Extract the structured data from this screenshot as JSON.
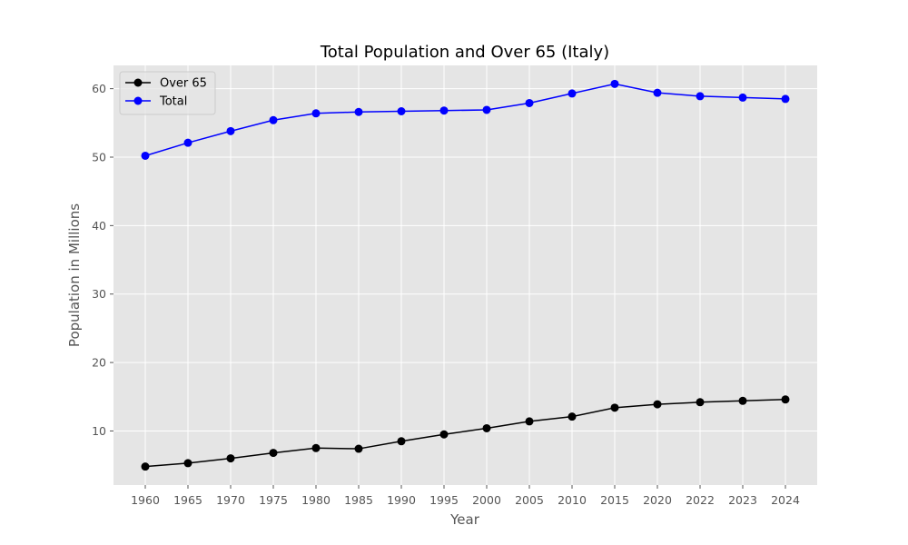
{
  "chart_data": {
    "type": "line",
    "title": "Total Population and Over 65 (Italy)",
    "xlabel": "Year",
    "ylabel": "Population in Millions",
    "categories": [
      "1960",
      "1965",
      "1970",
      "1975",
      "1980",
      "1985",
      "1990",
      "1995",
      "2000",
      "2005",
      "2010",
      "2015",
      "2020",
      "2022",
      "2023",
      "2024"
    ],
    "ylim": [
      2.1,
      63.4
    ],
    "yticks": [
      10,
      20,
      30,
      40,
      50,
      60
    ],
    "grid": true,
    "legend_position": "top-left",
    "series": [
      {
        "name": "Over 65",
        "color": "#000000",
        "values": [
          4.8,
          5.3,
          6.0,
          6.8,
          7.5,
          7.4,
          8.5,
          9.5,
          10.4,
          11.4,
          12.1,
          13.4,
          13.9,
          14.2,
          14.4,
          14.6
        ]
      },
      {
        "name": "Total",
        "color": "#0000ff",
        "values": [
          50.2,
          52.1,
          53.8,
          55.4,
          56.4,
          56.6,
          56.7,
          56.8,
          56.9,
          57.9,
          59.3,
          60.7,
          59.4,
          58.9,
          58.7,
          58.5
        ]
      }
    ],
    "colors": {
      "plot_background": "#e5e5e5",
      "grid": "#ffffff"
    }
  }
}
